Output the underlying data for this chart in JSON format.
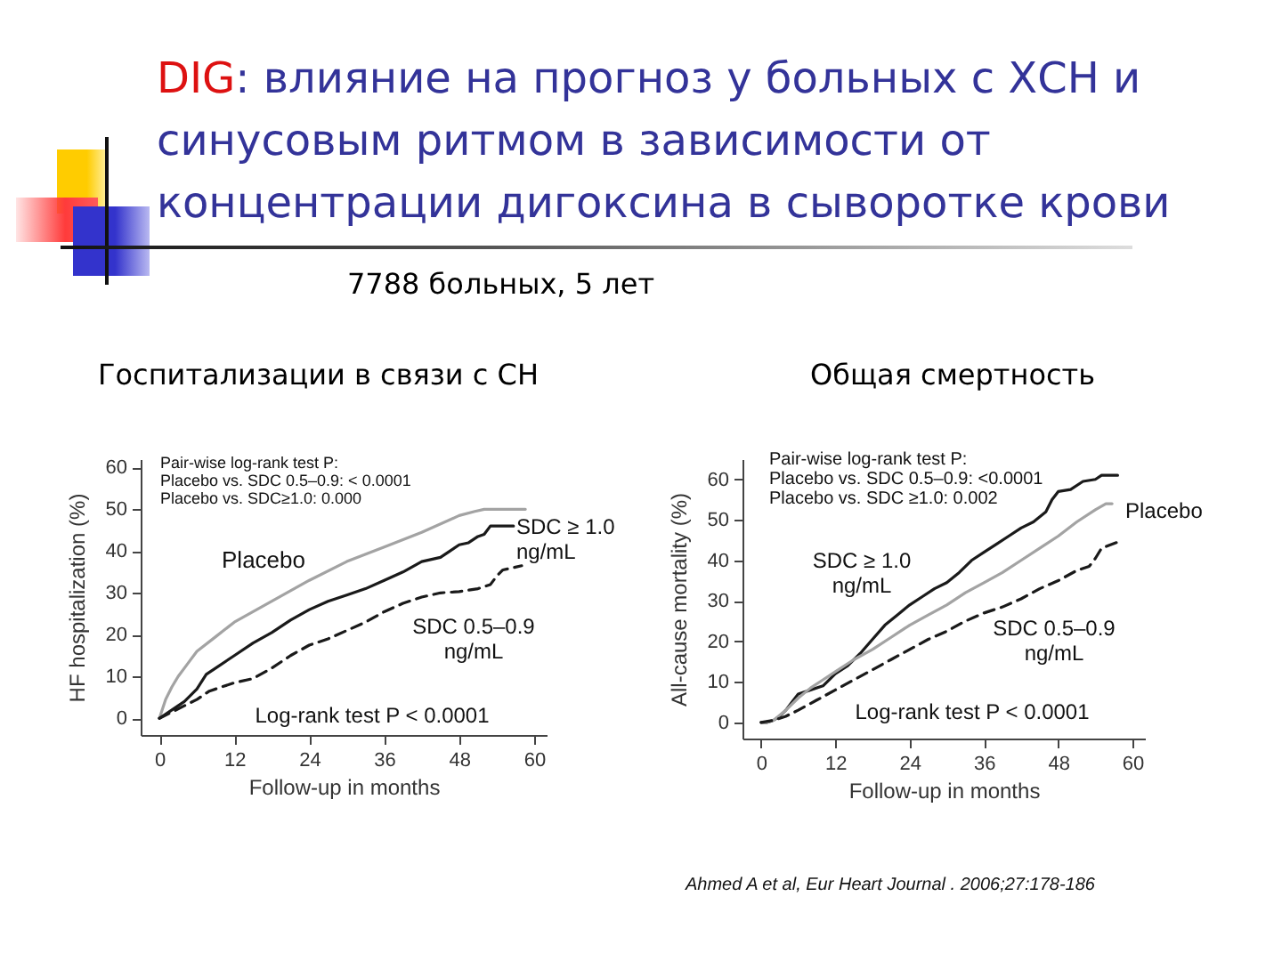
{
  "chart_data": [
    {
      "type": "other",
      "title": "DIG: влияние на прогноз у больных с ХСН и синусовым ритмом в зависимости от концентрации дигоксина в сыворотке крови",
      "subtitle": "7788 больных, 5 лет"
    },
    {
      "type": "line",
      "title": "Госпитализации в связи с СН",
      "xlabel": "Follow-up in months",
      "ylabel": "HF hospitalization (%)",
      "xlim": [
        -3,
        62
      ],
      "ylim": [
        -4,
        62
      ],
      "xticks": [
        0,
        12,
        24,
        36,
        48,
        60
      ],
      "yticks": [
        0,
        10,
        20,
        30,
        40,
        50,
        60
      ],
      "legend": false,
      "marker": "none",
      "annotations": [
        "Pair-wise log-rank test P:",
        "Placebo vs. SDC 0.5–0.9: < 0.0001",
        "Placebo vs. SDC≥1.0: 0.000",
        "Log-rank test P < 0.0001"
      ],
      "series": [
        {
          "name": "Placebo",
          "color": "#a3a3a3",
          "line_style": "solid",
          "x": [
            0,
            1,
            2,
            3,
            4.5,
            6,
            9,
            12,
            15,
            18,
            21,
            24,
            30,
            36,
            42,
            48,
            50.5,
            52,
            58.6
          ],
          "values": [
            0,
            4.5,
            7.5,
            10,
            13,
            16,
            19.5,
            23,
            25.5,
            28,
            30.5,
            33,
            37.5,
            41,
            44.5,
            48.5,
            49.5,
            50,
            50
          ]
        },
        {
          "name": "SDC ≥ 1.0 ng/mL",
          "color": "#1a1a1a",
          "line_style": "solid",
          "x": [
            0,
            2,
            4,
            6,
            7.5,
            9,
            12,
            15,
            18,
            21,
            24,
            27,
            30,
            33,
            36,
            39,
            42,
            45,
            46.5,
            48,
            49.5,
            51,
            52,
            53,
            54,
            56.7
          ],
          "values": [
            0,
            2,
            4,
            7,
            10.5,
            12,
            15,
            18,
            20.5,
            23.5,
            26,
            28,
            29.5,
            31,
            33,
            35,
            37.5,
            38.5,
            40,
            41.5,
            42,
            43.5,
            44,
            46,
            46,
            46
          ]
        },
        {
          "name": "SDC 0.5–0.9 ng/mL",
          "color": "#1a1a1a",
          "line_style": "dashed",
          "x": [
            0,
            2,
            4,
            6,
            8,
            10,
            12,
            15,
            18,
            21,
            24,
            27,
            30,
            33,
            36,
            39,
            42,
            45,
            48,
            51,
            53,
            54,
            55,
            58
          ],
          "values": [
            0,
            1.5,
            3,
            4.5,
            6.5,
            7.5,
            8.5,
            9.5,
            12,
            15,
            17.5,
            19,
            21,
            23,
            25.5,
            27.5,
            29,
            30,
            30.3,
            31,
            32,
            34,
            35.5,
            36.5
          ]
        }
      ]
    },
    {
      "type": "line",
      "title": "Общая смертность",
      "xlabel": "Follow-up in months",
      "ylabel": "All-cause mortality (%)",
      "xlim": [
        -3,
        62
      ],
      "ylim": [
        -4,
        65
      ],
      "xticks": [
        0,
        12,
        24,
        36,
        48,
        60
      ],
      "yticks": [
        0,
        10,
        20,
        30,
        40,
        50,
        60
      ],
      "legend": false,
      "marker": "none",
      "annotations": [
        "Pair-wise log-rank test P:",
        "Placebo vs. SDC 0.5–0.9: <0.0001",
        "Placebo vs. SDC ≥1.0: 0.002",
        "Log-rank test P < 0.0001",
        "Ahmed A et al, Eur Heart Journal . 2006;27:178-186"
      ],
      "series": [
        {
          "name": "SDC ≥ 1.0 ng/mL",
          "color": "#1a1a1a",
          "line_style": "solid",
          "x": [
            0,
            1,
            2,
            3,
            4,
            5,
            6,
            8,
            10,
            12,
            14,
            16,
            18,
            20,
            22,
            24,
            26,
            28,
            30,
            32,
            34,
            36,
            38,
            40,
            42,
            44,
            46,
            47,
            48,
            50,
            52,
            54,
            55,
            57.6
          ],
          "values": [
            0,
            0,
            0.5,
            1.5,
            3,
            5,
            7,
            8,
            9,
            12,
            14,
            17,
            20.5,
            24,
            26.5,
            29,
            31,
            33,
            34.5,
            37,
            40,
            42,
            44,
            46,
            48,
            49.5,
            52,
            55,
            57,
            57.5,
            59.5,
            60,
            61,
            61
          ]
        },
        {
          "name": "Placebo",
          "color": "#a3a3a3",
          "line_style": "solid",
          "x": [
            0,
            1,
            2,
            4,
            6,
            8,
            10,
            12,
            15,
            18,
            21,
            24,
            27,
            30,
            33,
            36,
            39,
            42,
            45,
            48,
            51,
            54,
            55.7,
            56.7
          ],
          "values": [
            0,
            0,
            0.5,
            3,
            6,
            8.5,
            10.5,
            12.5,
            15.5,
            18,
            21,
            24,
            26.5,
            29,
            32,
            34.5,
            37,
            40,
            43,
            46,
            49.5,
            52.5,
            54,
            54
          ]
        },
        {
          "name": "SDC 0.5–0.9 ng/mL",
          "color": "#1a1a1a",
          "line_style": "dashed",
          "x": [
            0,
            2,
            4,
            6,
            9,
            12,
            15,
            18,
            21,
            24,
            27,
            30,
            33,
            36,
            39,
            42,
            45,
            48,
            51,
            53,
            54,
            55,
            57.6
          ],
          "values": [
            0,
            0.5,
            1.5,
            3,
            5.5,
            8,
            10.5,
            13,
            15.5,
            18,
            20.5,
            22.5,
            25,
            27,
            28.5,
            30.5,
            33,
            35,
            37.5,
            38.5,
            40.5,
            43,
            44.5
          ]
        }
      ]
    }
  ]
}
